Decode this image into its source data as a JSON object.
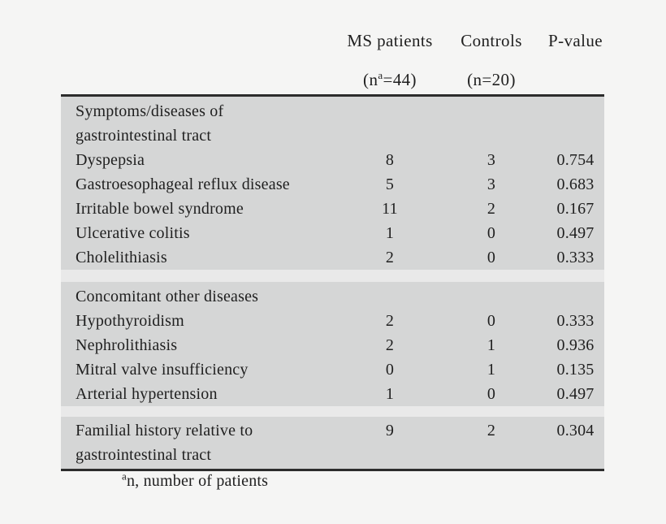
{
  "colors": {
    "page_bg": "#f5f5f4",
    "section_bg": "#d5d6d6",
    "gap_bg": "#e9e9e9",
    "border": "#2c2c2c",
    "text": "#1f1f1f"
  },
  "header": {
    "ms_label": "MS patients",
    "ms_n_prefix": "(n",
    "ms_n_sup": "a",
    "ms_n_suffix": "=44)",
    "controls_label": "Controls",
    "controls_n": "(n=20)",
    "pvalue_label": "P-value"
  },
  "sections": [
    {
      "title_lines": [
        "Symptoms/diseases of",
        "gastrointestinal tract"
      ],
      "rows": [
        {
          "label": "Dyspepsia",
          "ms": "8",
          "controls": "3",
          "p": "0.754"
        },
        {
          "label": "Gastroesophageal reflux disease",
          "ms": "5",
          "controls": "3",
          "p": "0.683"
        },
        {
          "label": "Irritable bowel syndrome",
          "ms": "11",
          "controls": "2",
          "p": "0.167"
        },
        {
          "label": "Ulcerative colitis",
          "ms": "1",
          "controls": "0",
          "p": "0.497"
        },
        {
          "label": "Cholelithiasis",
          "ms": "2",
          "controls": "0",
          "p": "0.333"
        }
      ]
    },
    {
      "title_lines": [
        "Concomitant other diseases"
      ],
      "rows": [
        {
          "label": "Hypothyroidism",
          "ms": "2",
          "controls": "0",
          "p": "0.333"
        },
        {
          "label": "Nephrolithiasis",
          "ms": "2",
          "controls": "1",
          "p": "0.936"
        },
        {
          "label": "Mitral valve insufficiency",
          "ms": "0",
          "controls": "1",
          "p": "0.135"
        },
        {
          "label": "Arterial hypertension",
          "ms": "1",
          "controls": "0",
          "p": "0.497"
        }
      ]
    },
    {
      "rows": [
        {
          "label_lines": [
            "Familial history relative to",
            "gastrointestinal tract"
          ],
          "ms": "9",
          "controls": "2",
          "p": "0.304"
        }
      ]
    }
  ],
  "footnote": {
    "sup": "a",
    "text": "n, number of patients"
  }
}
